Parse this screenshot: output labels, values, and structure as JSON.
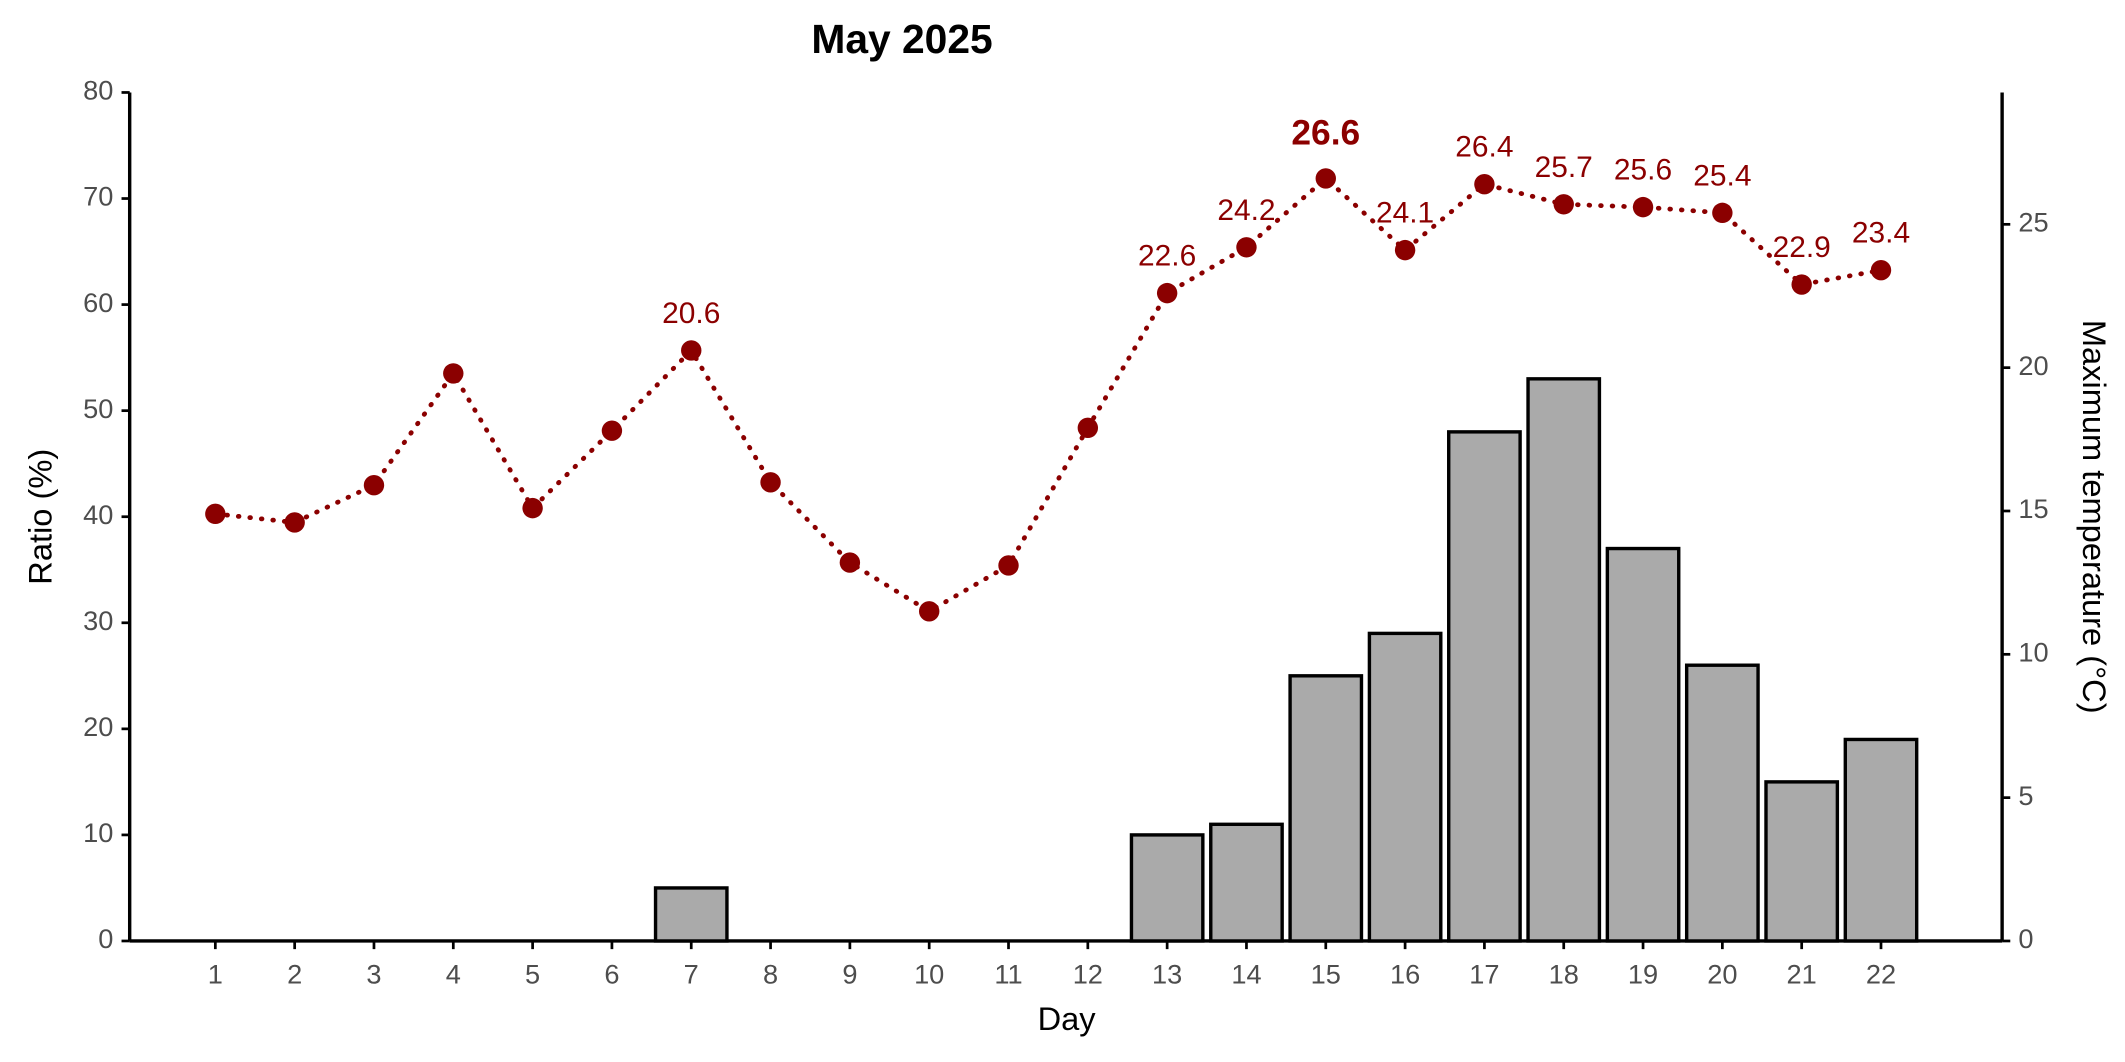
{
  "chart_data": {
    "type": "combo",
    "title": "May 2025",
    "x_label": "Day",
    "y_label": "Ratio (%)",
    "y2_label": "Maximum temperature (°C)",
    "categories": [
      "1",
      "2",
      "3",
      "4",
      "5",
      "6",
      "7",
      "8",
      "9",
      "10",
      "11",
      "12",
      "13",
      "14",
      "15",
      "16",
      "17",
      "18",
      "19",
      "20",
      "21",
      "22"
    ],
    "ylim": [
      0,
      80
    ],
    "yticks": [
      0,
      10,
      20,
      30,
      40,
      50,
      60,
      70,
      80
    ],
    "y2lim": [
      0,
      29.6
    ],
    "y2ticks": [
      0,
      5,
      10,
      15,
      20,
      25
    ],
    "series": [
      {
        "type": "bar",
        "color": "#aaaaaa",
        "values": [
          0,
          0,
          0,
          0,
          0,
          0,
          5,
          0,
          0,
          0,
          0,
          0,
          10,
          11,
          25,
          29,
          48,
          53,
          37,
          26,
          15,
          19
        ]
      },
      {
        "type": "line",
        "axis": "y2",
        "color": "#8b0000",
        "values": [
          14.9,
          14.6,
          15.9,
          19.8,
          15.1,
          17.8,
          20.6,
          16.0,
          13.2,
          11.5,
          13.1,
          17.9,
          22.6,
          24.2,
          26.6,
          24.1,
          26.4,
          25.7,
          25.6,
          25.4,
          22.9,
          23.4
        ],
        "value_labels": [
          null,
          null,
          null,
          null,
          null,
          null,
          "20.6",
          null,
          null,
          null,
          null,
          null,
          "22.6",
          "24.2",
          "26.6",
          "24.1",
          "26.4",
          "25.7",
          "25.6",
          "25.4",
          "22.9",
          "23.4"
        ]
      }
    ]
  }
}
